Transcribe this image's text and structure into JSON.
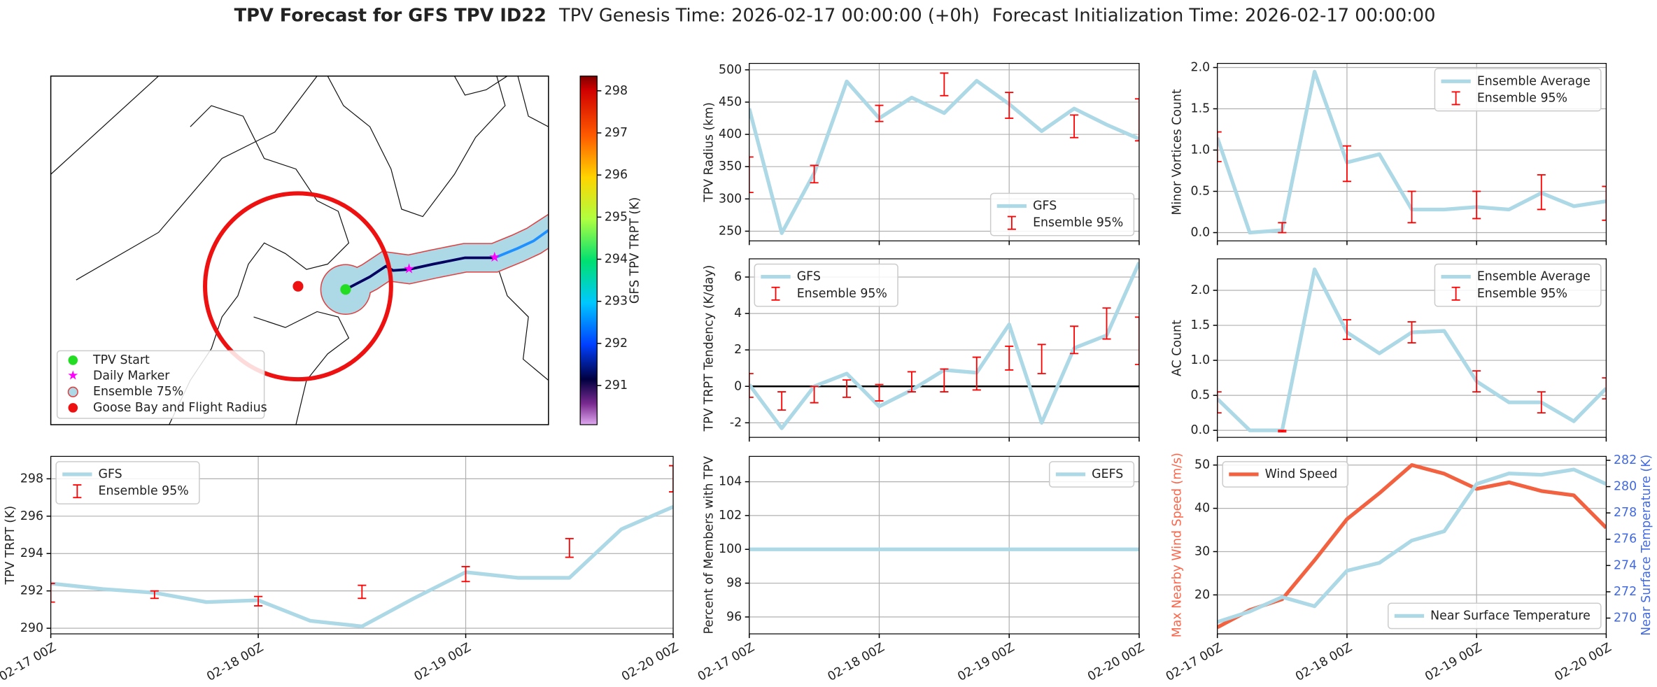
{
  "title": "TPV Forecast for GFS TPV ID22",
  "genesis": "TPV Genesis Time: 2026-02-17 00:00:00 (+0h)",
  "init": "Forecast Initialization Time: 2026-02-17 00:00:00",
  "map": {
    "legend": [
      "TPV Start",
      "Daily Marker",
      "Ensemble 75%",
      "Goose Bay and Flight Radius"
    ],
    "colorbar": {
      "label": "GFS TPV TRPT (K)",
      "lim": [
        290.07,
        298.35
      ],
      "ticks": [
        291,
        292,
        293,
        294,
        295,
        296,
        297,
        298
      ]
    }
  },
  "chart_data": [
    {
      "type": "line",
      "ylabel": "TPV Radius (km)",
      "x": [
        0,
        6,
        12,
        18,
        24,
        30,
        36,
        42,
        48,
        54,
        60,
        66,
        72
      ],
      "xlim": [
        0,
        72
      ],
      "xticks": [
        0,
        24,
        48,
        72
      ],
      "ylim": [
        235,
        510
      ],
      "yticks": [
        250,
        300,
        350,
        400,
        450,
        500
      ],
      "grid": true,
      "legend": "lower right",
      "series": [
        {
          "name": "GFS",
          "color": "#add8e6",
          "values": [
            440,
            247,
            340,
            482,
            425,
            457,
            433,
            483,
            447,
            405,
            440,
            415,
            393
          ]
        }
      ],
      "error_bars": {
        "name": "Ensemble 95%",
        "color": "#ff0000",
        "x": [
          0,
          12,
          24,
          36,
          48,
          60,
          72
        ],
        "low": [
          310,
          325,
          420,
          460,
          425,
          395,
          390
        ],
        "high": [
          365,
          352,
          445,
          495,
          465,
          430,
          455
        ]
      }
    },
    {
      "type": "line",
      "ylabel": "Minor Vortices Count",
      "x": [
        0,
        6,
        12,
        18,
        24,
        30,
        36,
        42,
        48,
        54,
        60,
        66,
        72
      ],
      "xlim": [
        0,
        72
      ],
      "xticks": [
        0,
        24,
        48,
        72
      ],
      "ylim": [
        -0.1,
        2.05
      ],
      "yticks": [
        {
          "value": 0,
          "label": "0.0"
        },
        {
          "value": 0.5,
          "label": "0.5"
        },
        {
          "value": 1,
          "label": "1.0"
        },
        {
          "value": 1.5,
          "label": "1.5"
        },
        {
          "value": 2,
          "label": "2.0"
        }
      ],
      "grid": true,
      "legend": "upper right",
      "series": [
        {
          "name": "Ensemble Average",
          "color": "#add8e6",
          "values": [
            1.15,
            0,
            0.03,
            1.95,
            0.85,
            0.95,
            0.28,
            0.28,
            0.31,
            0.28,
            0.48,
            0.32,
            0.38
          ]
        }
      ],
      "error_bars": {
        "name": "Ensemble 95%",
        "color": "#ff0000",
        "x": [
          0,
          12,
          24,
          36,
          48,
          60,
          72
        ],
        "low": [
          0.86,
          0,
          0.62,
          0.12,
          0.17,
          0.28,
          0.15
        ],
        "high": [
          1.22,
          0.12,
          1.05,
          0.5,
          0.5,
          0.7,
          0.56
        ]
      }
    },
    {
      "type": "line",
      "ylabel": "TPV TRPT Tendency (K/day)",
      "x": [
        0,
        6,
        12,
        18,
        24,
        30,
        36,
        42,
        48,
        54,
        60,
        66,
        72
      ],
      "xlim": [
        0,
        72
      ],
      "xticks": [
        0,
        24,
        48,
        72
      ],
      "ylim": [
        -2.8,
        7
      ],
      "yticks": [
        -2,
        0,
        2,
        4,
        6
      ],
      "grid": true,
      "legend": "upper left",
      "hline": 0,
      "series": [
        {
          "name": "GFS",
          "color": "#add8e6",
          "values": [
            0.1,
            -2.3,
            0,
            0.7,
            -1.1,
            -0.2,
            0.9,
            0.75,
            3.4,
            -2,
            2.1,
            2.8,
            6.8
          ]
        }
      ],
      "error_bars": {
        "name": "Ensemble 95%",
        "color": "#ff0000",
        "x": [
          0,
          6,
          12,
          18,
          24,
          30,
          36,
          42,
          48,
          54,
          60,
          66,
          72
        ],
        "low": [
          -0.6,
          -1.3,
          -0.9,
          -0.6,
          -0.8,
          -0.3,
          -0.3,
          -0.2,
          0.9,
          0.7,
          1.8,
          2.6,
          1.2
        ],
        "high": [
          0.7,
          -0.3,
          0,
          0.35,
          0.1,
          0.8,
          0.95,
          1.6,
          2.2,
          2.3,
          3.3,
          4.3,
          3.8
        ]
      }
    },
    {
      "type": "line",
      "ylabel": "AC Count",
      "x": [
        0,
        6,
        12,
        18,
        24,
        30,
        36,
        42,
        48,
        54,
        60,
        66,
        72
      ],
      "xlim": [
        0,
        72
      ],
      "xticks": [
        0,
        24,
        48,
        72
      ],
      "ylim": [
        -0.1,
        2.45
      ],
      "yticks": [
        {
          "value": 0,
          "label": "0.0"
        },
        {
          "value": 0.5,
          "label": "0.5"
        },
        {
          "value": 1,
          "label": "1.0"
        },
        {
          "value": 1.5,
          "label": "1.5"
        },
        {
          "value": 2,
          "label": "2.0"
        }
      ],
      "grid": true,
      "legend": "upper right",
      "series": [
        {
          "name": "Ensemble Average",
          "color": "#add8e6",
          "values": [
            0.45,
            0,
            0,
            2.3,
            1.4,
            1.1,
            1.4,
            1.42,
            0.7,
            0.4,
            0.4,
            0.13,
            0.6
          ]
        }
      ],
      "error_bars": {
        "name": "Ensemble 95%",
        "color": "#ff0000",
        "x": [
          0,
          12,
          24,
          36,
          48,
          60,
          72
        ],
        "low": [
          0.25,
          -0.02,
          1.3,
          1.25,
          0.55,
          0.25,
          0.45
        ],
        "high": [
          0.55,
          0,
          1.58,
          1.55,
          0.85,
          0.55,
          0.75
        ]
      }
    },
    {
      "type": "line",
      "ylabel": "TPV TRPT (K)",
      "x": [
        0,
        6,
        12,
        18,
        24,
        30,
        36,
        42,
        48,
        54,
        60,
        66,
        72
      ],
      "xlim": [
        0,
        72
      ],
      "xticks": [
        {
          "value": 0,
          "label": "02-17 00Z"
        },
        {
          "value": 24,
          "label": "02-18 00Z"
        },
        {
          "value": 48,
          "label": "02-19 00Z"
        },
        {
          "value": 72,
          "label": "02-20 00Z"
        }
      ],
      "ylim": [
        289.7,
        299.2
      ],
      "yticks": [
        290,
        292,
        294,
        296,
        298
      ],
      "grid": true,
      "legend": "upper left",
      "series": [
        {
          "name": "GFS",
          "color": "#add8e6",
          "values": [
            292.4,
            292.1,
            291.9,
            291.4,
            291.5,
            290.4,
            290.1,
            291.6,
            293,
            292.7,
            292.7,
            295.3,
            296.5
          ]
        }
      ],
      "error_bars": {
        "name": "Ensemble 95%",
        "color": "#ff0000",
        "x": [
          0,
          12,
          24,
          36,
          48,
          60,
          72
        ],
        "low": [
          291.4,
          291.6,
          291.2,
          291.6,
          292.5,
          293.8,
          297.3
        ],
        "high": [
          292.4,
          292,
          291.7,
          292.3,
          293.3,
          294.8,
          298.7
        ]
      }
    },
    {
      "type": "line",
      "ylabel": "Percent of Members with TPV",
      "x": [
        0,
        6,
        12,
        18,
        24,
        30,
        36,
        42,
        48,
        54,
        60,
        66,
        72
      ],
      "xlim": [
        0,
        72
      ],
      "xticks": [
        {
          "value": 0,
          "label": "02-17 00Z"
        },
        {
          "value": 24,
          "label": "02-18 00Z"
        },
        {
          "value": 48,
          "label": "02-19 00Z"
        },
        {
          "value": 72,
          "label": "02-20 00Z"
        }
      ],
      "ylim": [
        95,
        105.5
      ],
      "yticks": [
        96,
        98,
        100,
        102,
        104
      ],
      "grid": true,
      "legend": "upper right",
      "series": [
        {
          "name": "GEFS",
          "color": "#add8e6",
          "values": [
            100,
            100,
            100,
            100,
            100,
            100,
            100,
            100,
            100,
            100,
            100,
            100,
            100
          ]
        }
      ]
    },
    {
      "type": "line",
      "ylabel": "Max Nearby Wind Speed (m/s)",
      "y2label": "Near Surface Temperature (K)",
      "ylabel_color": "#ff6347",
      "y2_color": "#4169e1",
      "x": [
        0,
        6,
        12,
        18,
        24,
        30,
        36,
        42,
        48,
        54,
        60,
        66,
        72
      ],
      "xlim": [
        0,
        72
      ],
      "xticks": [
        {
          "value": 0,
          "label": "02-17 00Z"
        },
        {
          "value": 24,
          "label": "02-18 00Z"
        },
        {
          "value": 48,
          "label": "02-19 00Z"
        },
        {
          "value": 72,
          "label": "02-20 00Z"
        }
      ],
      "ylim": [
        11,
        52
      ],
      "yticks": [
        20,
        30,
        40,
        50
      ],
      "y2lim": [
        268.8,
        282.3
      ],
      "y2ticks": [
        270,
        272,
        274,
        276,
        278,
        280,
        282
      ],
      "grid": true,
      "legend": "upper left",
      "legend2": "lower right",
      "series": [
        {
          "name": "Wind Speed",
          "color": "#f26140",
          "values": [
            12.5,
            16.5,
            19,
            28,
            37.5,
            43.5,
            50,
            48,
            44.5,
            46,
            44,
            43,
            35.5
          ]
        },
        {
          "name": "Near Surface Temperature",
          "color": "#add8e6",
          "axis": "y2",
          "values": [
            269.7,
            270.5,
            271.6,
            270.9,
            273.6,
            274.2,
            275.9,
            276.6,
            280.2,
            281,
            280.9,
            281.3,
            280.2
          ]
        }
      ]
    }
  ]
}
